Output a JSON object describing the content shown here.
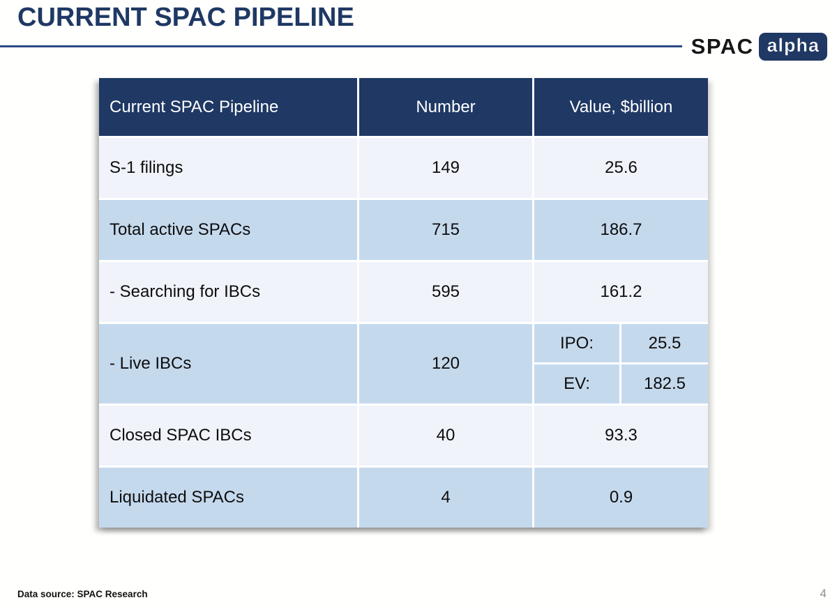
{
  "slide": {
    "title": "CURRENT SPAC PIPELINE",
    "data_source": "Data source: SPAC Research",
    "page_number": "4"
  },
  "logo": {
    "text": "SPAC",
    "badge": "alpha"
  },
  "colors": {
    "header_navy": "#1F3864",
    "row_light": "#F0F3F9",
    "row_blue": "#C5D9ED",
    "title_navy": "#1F3864",
    "rule_navy": "#2B4A87",
    "page_number_gray": "#8C8C8C"
  },
  "table": {
    "headers": [
      "Current SPAC Pipeline",
      "Number",
      "Value, $billion"
    ],
    "rows": [
      {
        "label": "S-1 filings",
        "number": "149",
        "value": "25.6"
      },
      {
        "label": "Total active SPACs",
        "number": "715",
        "value": "186.7"
      },
      {
        "label": "- Searching for IBCs",
        "number": "595",
        "value": "161.2"
      },
      {
        "label": "- Live IBCs",
        "number": "120",
        "value_split": [
          {
            "key": "IPO:",
            "val": "25.5"
          },
          {
            "key": "EV:",
            "val": "182.5"
          }
        ]
      },
      {
        "label": "Closed SPAC IBCs",
        "number": "40",
        "value": "93.3"
      },
      {
        "label": "Liquidated SPACs",
        "number": "4",
        "value": "0.9"
      }
    ]
  },
  "chart_data": {
    "type": "table",
    "title": "Current SPAC Pipeline",
    "columns": [
      "Current SPAC Pipeline",
      "Number",
      "Value, $billion"
    ],
    "rows": [
      [
        "S-1 filings",
        149,
        25.6
      ],
      [
        "Total active SPACs",
        715,
        186.7
      ],
      [
        "- Searching for IBCs",
        595,
        161.2
      ],
      [
        "- Live IBCs",
        120,
        "IPO: 25.5 / EV: 182.5"
      ],
      [
        "Closed SPAC IBCs",
        40,
        93.3
      ],
      [
        "Liquidated SPACs",
        4,
        0.9
      ]
    ]
  }
}
